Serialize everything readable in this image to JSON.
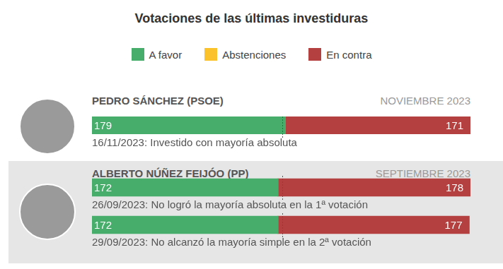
{
  "title": "Votaciones de las últimas investiduras",
  "legend": "top",
  "chart_data": [
    {
      "type": "bar",
      "orientation": "horizontal",
      "stacked": true,
      "data_labels": true,
      "tick_labels": false,
      "grid": false,
      "title": "PEDRO SÁNCHEZ (PSOE)",
      "subtitle": "NOVIEMBRE 2023",
      "categories": [
        null
      ],
      "annotations": [
        "16/11/2023: Investido con mayoría absoluta"
      ],
      "xlim": [
        0,
        350
      ],
      "majority_line": 176,
      "series": [
        {
          "name": "A favor",
          "color": "#46ae6a",
          "values": [
            179
          ]
        },
        {
          "name": "Abstenciones",
          "color": "#fbc22b",
          "values": [
            0
          ]
        },
        {
          "name": "En contra",
          "color": "#b4403f",
          "values": [
            171
          ]
        }
      ]
    },
    {
      "type": "bar",
      "orientation": "horizontal",
      "stacked": true,
      "data_labels": true,
      "tick_labels": false,
      "grid": false,
      "title": "ALBERTO NÚÑEZ FEIJÓO (PP)",
      "subtitle": "SEPTIEMBRE 2023",
      "categories": [
        null,
        null
      ],
      "annotations": [
        "26/09/2023: No logró la mayoría absoluta en la 1ª votación",
        "29/09/2023: No alcanzó la mayoría simple en la 2ª votación"
      ],
      "xlim": [
        0,
        350
      ],
      "majority_line": 176,
      "series": [
        {
          "name": "A favor",
          "color": "#46ae6a",
          "values": [
            172,
            172
          ]
        },
        {
          "name": "Abstenciones",
          "color": "#fbc22b",
          "values": [
            0,
            0
          ]
        },
        {
          "name": "En contra",
          "color": "#b4403f",
          "values": [
            178,
            177
          ]
        }
      ]
    }
  ]
}
